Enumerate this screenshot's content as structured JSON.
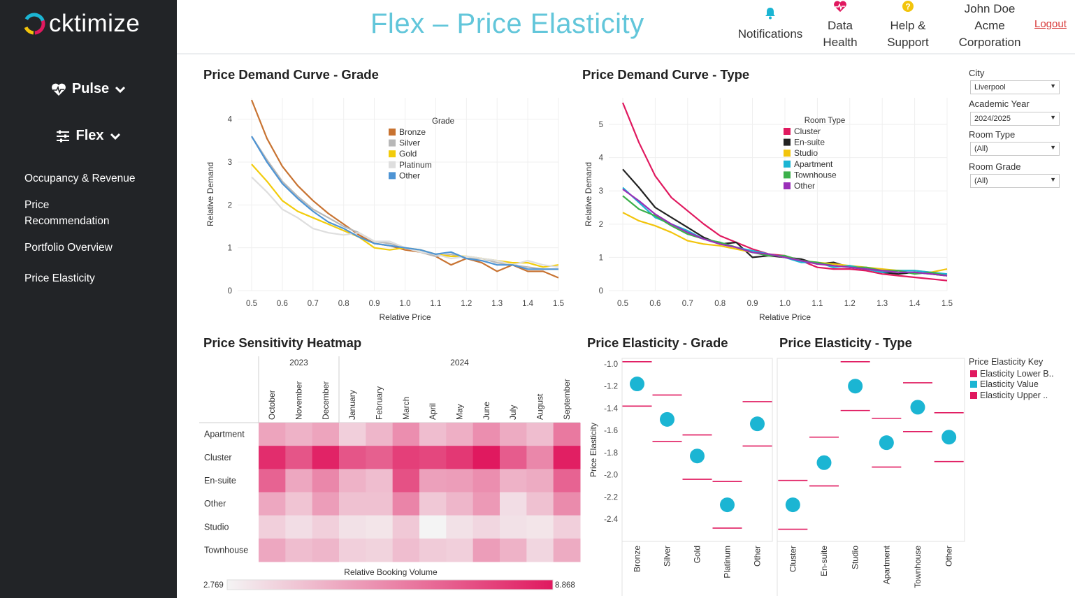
{
  "app": {
    "brand": "cktimize",
    "page_title": "Flex – Price Elasticity"
  },
  "sidebar": {
    "pulse_label": "Pulse",
    "flex_label": "Flex",
    "links": [
      "Occupancy & Revenue",
      "Price\nRecommendation",
      "Portfolio Overview",
      "Price Elasticity"
    ]
  },
  "topbar": {
    "notifications": "Notifications",
    "data_health": "Data\nHealth",
    "help": "Help &\nSupport",
    "user": "John Doe\nAcme\nCorporation",
    "logout": "Logout"
  },
  "filters": {
    "city_label": "City",
    "city_value": "Liverpool",
    "year_label": "Academic Year",
    "year_value": "2024/2025",
    "type_label": "Room Type",
    "type_value": "(All)",
    "grade_label": "Room Grade",
    "grade_value": "(All)"
  },
  "elasticity_key": {
    "title": "Price Elasticity Key",
    "items": [
      {
        "label": "Elasticity Lower B..",
        "color": "#e0195f"
      },
      {
        "label": "Elasticity Value",
        "color": "#1bb5d3"
      },
      {
        "label": "Elasticity Upper ..",
        "color": "#e0195f"
      }
    ]
  },
  "chart_data": [
    {
      "id": "grade_curve",
      "type": "line",
      "title": "Price Demand Curve - Grade",
      "xlabel": "Relative Price",
      "ylabel": "Relative Demand",
      "xlim": [
        0.5,
        1.5
      ],
      "ylim": [
        0,
        4.5
      ],
      "xticks": [
        "0.5",
        "0.6",
        "0.7",
        "0.8",
        "0.9",
        "1.0",
        "1.1",
        "1.2",
        "1.3",
        "1.4",
        "1.5"
      ],
      "yticks": [
        "0",
        "1",
        "2",
        "3",
        "4"
      ],
      "legend_title": "Grade",
      "x": [
        0.5,
        0.55,
        0.6,
        0.65,
        0.7,
        0.75,
        0.8,
        0.85,
        0.9,
        0.95,
        1.0,
        1.05,
        1.1,
        1.15,
        1.2,
        1.25,
        1.3,
        1.35,
        1.4,
        1.45,
        1.5
      ],
      "series": [
        {
          "name": "Bronze",
          "color": "#c87331",
          "values": [
            4.45,
            3.55,
            2.9,
            2.45,
            2.1,
            1.8,
            1.55,
            1.3,
            1.1,
            1.05,
            0.95,
            0.9,
            0.8,
            0.6,
            0.75,
            0.65,
            0.45,
            0.6,
            0.45,
            0.45,
            0.3
          ]
        },
        {
          "name": "Silver",
          "color": "#b8b8b8",
          "values": [
            3.6,
            3.05,
            2.55,
            2.2,
            1.9,
            1.7,
            1.5,
            1.35,
            1.15,
            1.1,
            1.0,
            0.9,
            0.8,
            0.85,
            0.75,
            0.75,
            0.65,
            0.6,
            0.55,
            0.5,
            0.5
          ]
        },
        {
          "name": "Gold",
          "color": "#f2cc0c",
          "values": [
            2.95,
            2.55,
            2.1,
            1.85,
            1.7,
            1.55,
            1.4,
            1.25,
            1.0,
            0.95,
            1.0,
            0.95,
            0.85,
            0.8,
            0.8,
            0.75,
            0.7,
            0.65,
            0.65,
            0.55,
            0.6
          ]
        },
        {
          "name": "Platinum",
          "color": "#dedede",
          "values": [
            2.65,
            2.3,
            1.9,
            1.7,
            1.45,
            1.35,
            1.3,
            1.35,
            1.15,
            1.15,
            1.0,
            0.9,
            0.85,
            0.75,
            0.8,
            0.75,
            0.7,
            0.6,
            0.7,
            0.6,
            0.55
          ]
        },
        {
          "name": "Other",
          "color": "#4e94d4",
          "values": [
            3.6,
            3.0,
            2.5,
            2.15,
            1.85,
            1.6,
            1.45,
            1.25,
            1.1,
            1.05,
            1.0,
            0.95,
            0.85,
            0.9,
            0.75,
            0.7,
            0.6,
            0.6,
            0.5,
            0.5,
            0.5
          ]
        }
      ]
    },
    {
      "id": "type_curve",
      "type": "line",
      "title": "Price Demand Curve - Type",
      "xlabel": "Relative Price",
      "ylabel": "Relative Demand",
      "xlim": [
        0.5,
        1.5
      ],
      "ylim": [
        0,
        5.8
      ],
      "xticks": [
        "0.5",
        "0.6",
        "0.7",
        "0.8",
        "0.9",
        "1.0",
        "1.1",
        "1.2",
        "1.3",
        "1.4",
        "1.5"
      ],
      "yticks": [
        "0",
        "1",
        "2",
        "3",
        "4",
        "5"
      ],
      "legend_title": "Room Type",
      "x": [
        0.5,
        0.55,
        0.6,
        0.65,
        0.7,
        0.75,
        0.8,
        0.85,
        0.9,
        0.95,
        1.0,
        1.05,
        1.1,
        1.15,
        1.2,
        1.25,
        1.3,
        1.35,
        1.4,
        1.45,
        1.5
      ],
      "series": [
        {
          "name": "Cluster",
          "color": "#e0195f",
          "values": [
            5.65,
            4.45,
            3.45,
            2.8,
            2.4,
            2.0,
            1.65,
            1.45,
            1.25,
            1.1,
            1.05,
            0.9,
            0.7,
            0.65,
            0.65,
            0.6,
            0.5,
            0.45,
            0.4,
            0.35,
            0.3
          ]
        },
        {
          "name": "En-suite",
          "color": "#222222",
          "values": [
            3.65,
            3.1,
            2.5,
            2.2,
            1.9,
            1.6,
            1.4,
            1.45,
            1.0,
            1.05,
            1.0,
            0.95,
            0.8,
            0.85,
            0.7,
            0.65,
            0.55,
            0.5,
            0.55,
            0.5,
            0.45
          ]
        },
        {
          "name": "Studio",
          "color": "#f2c40c",
          "values": [
            2.35,
            2.1,
            1.95,
            1.75,
            1.5,
            1.4,
            1.35,
            1.25,
            1.15,
            1.1,
            1.0,
            0.9,
            0.85,
            0.8,
            0.75,
            0.7,
            0.65,
            0.6,
            0.6,
            0.55,
            0.65
          ]
        },
        {
          "name": "Apartment",
          "color": "#1bb5d3",
          "values": [
            3.1,
            2.65,
            2.2,
            2.0,
            1.8,
            1.55,
            1.45,
            1.3,
            1.2,
            1.1,
            1.0,
            0.85,
            0.85,
            0.7,
            0.75,
            0.65,
            0.55,
            0.6,
            0.6,
            0.55,
            0.5
          ]
        },
        {
          "name": "Townhouse",
          "color": "#3cb04a",
          "values": [
            2.85,
            2.45,
            2.25,
            1.95,
            1.7,
            1.55,
            1.45,
            1.3,
            1.15,
            1.05,
            1.05,
            0.9,
            0.85,
            0.75,
            0.7,
            0.7,
            0.6,
            0.6,
            0.5,
            0.55,
            0.45
          ]
        },
        {
          "name": "Other",
          "color": "#9a2fb8",
          "values": [
            3.05,
            2.7,
            2.3,
            2.0,
            1.75,
            1.55,
            1.4,
            1.3,
            1.15,
            1.1,
            1.0,
            0.9,
            0.8,
            0.75,
            0.7,
            0.65,
            0.6,
            0.55,
            0.55,
            0.5,
            0.45
          ]
        }
      ]
    },
    {
      "id": "heatmap",
      "type": "heatmap",
      "title": "Price Sensitivity Heatmap",
      "years": [
        {
          "label": "2023",
          "span": 3
        },
        {
          "label": "2024",
          "span": 9
        }
      ],
      "columns": [
        "October",
        "November",
        "December",
        "January",
        "February",
        "March",
        "April",
        "May",
        "June",
        "July",
        "August",
        "September"
      ],
      "rows": [
        "Apartment",
        "Cluster",
        "En-suite",
        "Other",
        "Studio",
        "Townhouse"
      ],
      "values": [
        [
          5.0,
          4.6,
          5.0,
          3.8,
          4.5,
          5.6,
          4.3,
          4.7,
          5.6,
          4.8,
          4.3,
          6.2
        ],
        [
          8.3,
          7.2,
          8.6,
          7.2,
          6.9,
          7.8,
          7.6,
          8.0,
          8.868,
          7.0,
          5.8,
          8.7
        ],
        [
          6.8,
          4.9,
          5.8,
          4.6,
          4.3,
          7.3,
          5.1,
          5.2,
          5.6,
          4.6,
          4.8,
          6.8
        ],
        [
          4.9,
          4.1,
          5.2,
          4.2,
          4.2,
          5.9,
          4.0,
          4.5,
          5.3,
          3.4,
          4.2,
          5.7
        ],
        [
          3.8,
          3.4,
          3.8,
          3.3,
          3.2,
          4.0,
          2.769,
          3.3,
          3.6,
          3.3,
          3.2,
          3.8
        ],
        [
          4.9,
          4.3,
          4.5,
          3.8,
          3.7,
          4.3,
          3.9,
          3.8,
          5.2,
          4.6,
          3.6,
          4.8
        ]
      ],
      "legend_title": "Relative Booking Volume",
      "min": 2.769,
      "max": 8.868,
      "min_label": "2.769",
      "max_label": "8.868"
    },
    {
      "id": "elasticity_grade",
      "type": "scatter",
      "title": "Price Elasticity - Grade",
      "ylabel": "Price Elasticity",
      "ylim": [
        -2.6,
        -0.95
      ],
      "yticks": [
        "-1.0",
        "-1.2",
        "-1.4",
        "-1.6",
        "-1.8",
        "-2.0",
        "-2.2",
        "-2.4"
      ],
      "categories": [
        "Bronze",
        "Silver",
        "Gold",
        "Platinum",
        "Other"
      ],
      "values": [
        -1.18,
        -1.5,
        -1.83,
        -2.27,
        -1.54
      ],
      "upper": [
        -0.98,
        -1.28,
        -1.64,
        -2.06,
        -1.34
      ],
      "lower": [
        -1.38,
        -1.7,
        -2.04,
        -2.48,
        -1.74
      ]
    },
    {
      "id": "elasticity_type",
      "type": "scatter",
      "title": "Price Elasticity - Type",
      "ylim": [
        -2.6,
        -0.95
      ],
      "categories": [
        "Cluster",
        "En-suite",
        "Studio",
        "Apartment",
        "Townhouse",
        "Other"
      ],
      "values": [
        -2.27,
        -1.89,
        -1.2,
        -1.71,
        -1.39,
        -1.66
      ],
      "upper": [
        -2.05,
        -1.66,
        -0.98,
        -1.49,
        -1.17,
        -1.44
      ],
      "lower": [
        -2.49,
        -2.1,
        -1.42,
        -1.93,
        -1.61,
        -1.88
      ]
    }
  ]
}
